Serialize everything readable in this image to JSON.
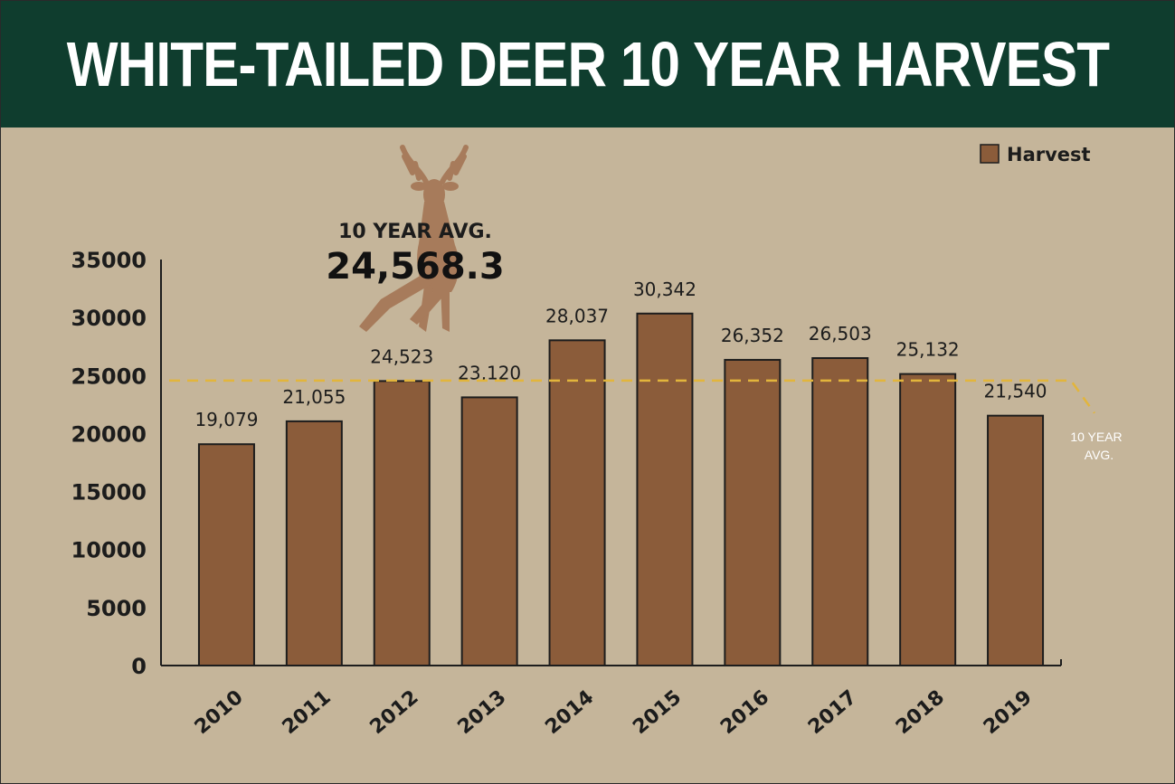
{
  "chart_data": {
    "type": "bar",
    "title": "WHITE-TAILED DEER 10 YEAR HARVEST",
    "categories": [
      "2010",
      "2011",
      "2012",
      "2013",
      "2014",
      "2015",
      "2016",
      "2017",
      "2018",
      "2019"
    ],
    "series": [
      {
        "name": "Harvest",
        "values": [
          19079,
          21055,
          24523,
          23120,
          28037,
          30342,
          26352,
          26503,
          25132,
          21540
        ],
        "data_labels": [
          "19,079",
          "21,055",
          "24,523",
          "23,120",
          "28,037",
          "30,342",
          "26,352",
          "26,503",
          "25,132",
          "21,540"
        ]
      }
    ],
    "ylim": [
      0,
      35000
    ],
    "yticks": [
      "0",
      "5000",
      "10000",
      "15000",
      "20000",
      "25000",
      "30000",
      "35000"
    ],
    "xlabel": "",
    "ylabel": "",
    "legend": "top-right",
    "grid": false,
    "reference_line": {
      "value": 24568.3,
      "style": "dashed",
      "label_top_line1": "10 YEAR AVG.",
      "label_top_line2": "24,568.3",
      "label_side_line1": "10 YEAR",
      "label_side_line2": "AVG."
    }
  },
  "colors": {
    "banner": "#0f3d2e",
    "background": "#c5b59a",
    "bar": "#8b5c3a",
    "avg_line": "#e2b53c",
    "deer": "#a77b5b"
  },
  "icons": {
    "deer": "deer-silhouette-icon"
  }
}
